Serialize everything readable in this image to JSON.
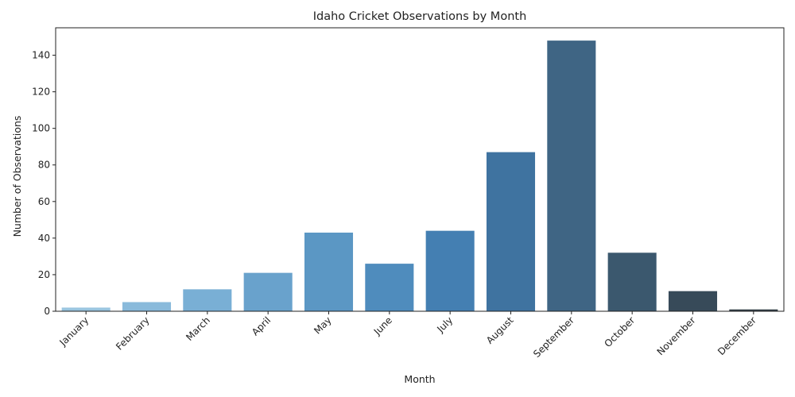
{
  "chart_data": {
    "type": "bar",
    "title": "Idaho Cricket Observations by Month",
    "xlabel": "Month",
    "ylabel": "Number of Observations",
    "categories": [
      "January",
      "February",
      "March",
      "April",
      "May",
      "June",
      "July",
      "August",
      "September",
      "October",
      "November",
      "December"
    ],
    "values": [
      2,
      5,
      12,
      21,
      43,
      26,
      44,
      87,
      148,
      32,
      11,
      1
    ],
    "colors": [
      "#9ac5e0",
      "#89badb",
      "#79afd5",
      "#69a2cc",
      "#5b97c4",
      "#4f8cbd",
      "#447fb2",
      "#3f73a0",
      "#3f6584",
      "#3b586e",
      "#374a59",
      "#323d46"
    ],
    "ylim": [
      0,
      155
    ],
    "yticks": [
      0,
      20,
      40,
      60,
      80,
      100,
      120,
      140
    ],
    "grid": false,
    "legend": "none"
  }
}
